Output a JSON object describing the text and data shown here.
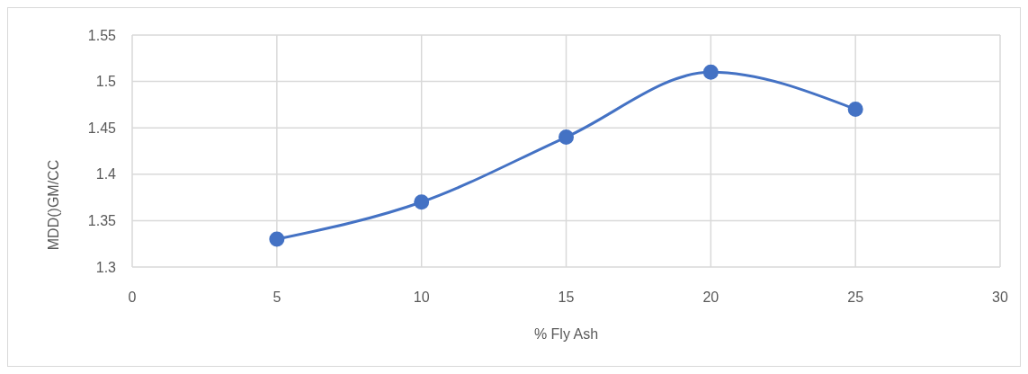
{
  "chart_data": {
    "type": "line",
    "xlabel": "% Fly Ash",
    "ylabel": "MDD()GM/CC",
    "x": [
      5,
      10,
      15,
      20,
      25
    ],
    "series": [
      {
        "color": "#4472c4",
        "values": [
          1.33,
          1.37,
          1.44,
          1.51,
          1.47
        ]
      }
    ],
    "xlim": [
      0,
      30
    ],
    "xticks": [
      0,
      5,
      10,
      15,
      20,
      25,
      30
    ],
    "ylim": [
      1.3,
      1.55
    ],
    "yticks": [
      1.3,
      1.35,
      1.4,
      1.45,
      1.5,
      1.55
    ],
    "grid": true,
    "marker": "circle",
    "line_style": "solid",
    "legend": false
  }
}
